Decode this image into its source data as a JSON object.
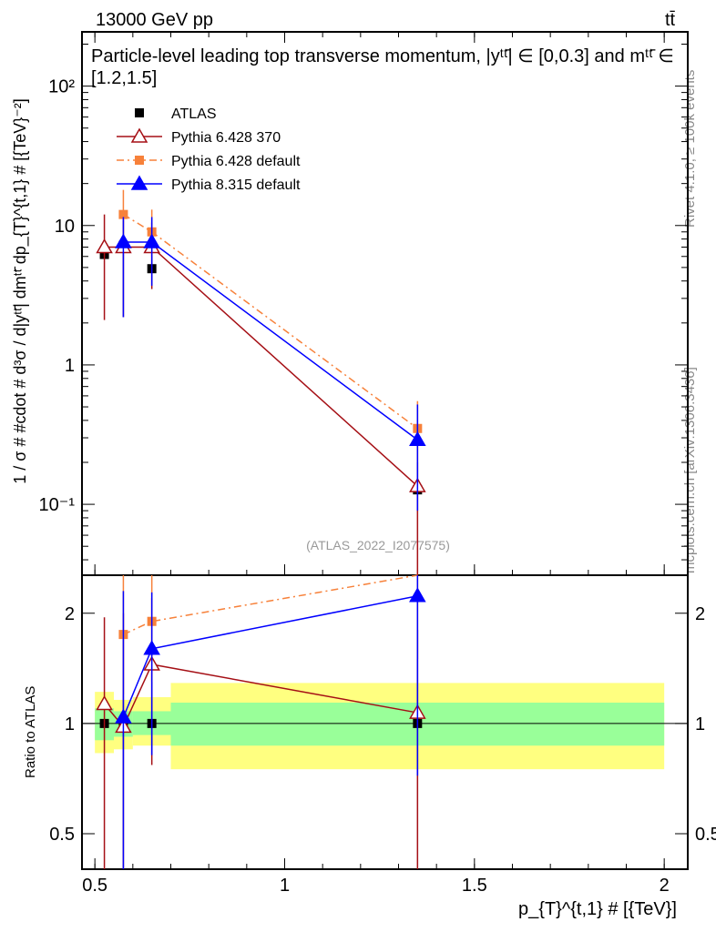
{
  "header": {
    "energy": "13000 GeV pp",
    "process": "tt̄",
    "title": "Particle-level leading top transverse momentum, |yᵗᵗ̄| ∈ [0,0.3] and mᵗᵗ̄ ∈ [1.2,1.5]",
    "analysis": "(ATLAS_2022_I2077575)",
    "side_rivet": "Rivet 4.1.0, ≥ 100k events",
    "side_mcplots": "mcplots.cern.ch [arXiv:1306.3436]"
  },
  "chart_data": {
    "type": "scatter",
    "xlabel": "p_{T}^{t,1} # [{TeV}]",
    "ylabel": "1 / σ # #cdot # d³σ / d|yᵗᵗ̄| dmᵗᵗ̄ dp_{T}^{t,1} # [{TeV}⁻²]",
    "ratio_ylabel": "Ratio to ATLAS",
    "xlim": [
      0.466,
      2.062
    ],
    "ylim": [
      0.031,
      245
    ],
    "ratio_ylim": [
      0.4,
      2.54
    ],
    "xticks": [
      {
        "v": 0.5,
        "l": "0.5"
      },
      {
        "v": 1,
        "l": "1"
      },
      {
        "v": 1.5,
        "l": "1.5"
      },
      {
        "v": 2,
        "l": "2"
      }
    ],
    "yticks": [
      {
        "v": 100,
        "l": "10²"
      },
      {
        "v": 10,
        "l": "10"
      },
      {
        "v": 1,
        "l": "1"
      },
      {
        "v": 0.1,
        "l": "10⁻¹"
      }
    ],
    "ratio_yticks": [
      {
        "v": 0.5,
        "l": "0.5"
      },
      {
        "v": 1,
        "l": "1"
      },
      {
        "v": 2,
        "l": "2"
      }
    ],
    "bins": [
      [
        0.5,
        0.55
      ],
      [
        0.55,
        0.6
      ],
      [
        0.6,
        0.7
      ],
      [
        0.7,
        2.0
      ]
    ],
    "bands": {
      "yellow": [
        [
          0.83,
          1.22
        ],
        [
          0.85,
          1.16
        ],
        [
          0.87,
          1.18
        ],
        [
          0.75,
          1.29
        ]
      ],
      "green": [
        [
          0.9,
          1.1
        ],
        [
          0.92,
          1.08
        ],
        [
          0.93,
          1.08
        ],
        [
          0.87,
          1.14
        ]
      ]
    },
    "series": [
      {
        "name": "ATLAS",
        "color": "#000000",
        "marker": "square",
        "line": "none",
        "x": [
          0.525,
          0.575,
          0.65,
          1.35
        ],
        "y": [
          6.2,
          7.2,
          4.9,
          0.127
        ],
        "err": [
          [
            6.2,
            6.2
          ],
          [
            7.2,
            7.2
          ],
          [
            4.9,
            4.9
          ],
          [
            0.127,
            0.127
          ]
        ],
        "ratio": [
          1,
          1,
          1,
          1
        ]
      },
      {
        "name": "Pythia 6.428 370",
        "color": "#a50f15",
        "marker": "open-triangle",
        "line": "solid",
        "x": [
          0.525,
          0.575,
          0.65,
          1.35
        ],
        "y": [
          7.0,
          7.0,
          7.0,
          0.135
        ],
        "err": [
          [
            2.1,
            12
          ],
          [
            2.2,
            11
          ],
          [
            3.5,
            10.5
          ],
          [
            0.02,
            0.2
          ]
        ],
        "ratio": [
          1.13,
          0.98,
          1.45,
          1.07
        ],
        "rerr": [
          [
            0.35,
            1.95
          ],
          [
            0.3,
            2.0
          ],
          [
            0.77,
            2.2
          ],
          [
            0.2,
            1.8
          ]
        ]
      },
      {
        "name": "Pythia 6.428 default",
        "color": "#f7813a",
        "marker": "square",
        "line": "dashdot",
        "x": [
          0.575,
          0.65,
          1.35
        ],
        "y": [
          12,
          9,
          0.35
        ],
        "err": [
          [
            8,
            18
          ],
          [
            6,
            13
          ],
          [
            0.2,
            0.55
          ]
        ],
        "ratio": [
          1.75,
          1.9,
          2.8
        ],
        "rerr": [
          [
            1.2,
            2.6
          ],
          [
            1.3,
            2.6
          ],
          [
            1.5,
            4
          ]
        ]
      },
      {
        "name": "Pythia 8.315 default",
        "color": "#0000ff",
        "marker": "triangle",
        "line": "solid",
        "x": [
          0.575,
          0.65,
          1.35
        ],
        "y": [
          7.6,
          7.6,
          0.29
        ],
        "err": [
          [
            2.2,
            11.5
          ],
          [
            3.7,
            11.5
          ],
          [
            0.09,
            0.52
          ]
        ],
        "ratio": [
          1.04,
          1.6,
          2.23
        ],
        "rerr": [
          [
            0.3,
            2.3
          ],
          [
            0.82,
            2.28
          ],
          [
            0.72,
            3.5
          ]
        ]
      }
    ]
  }
}
